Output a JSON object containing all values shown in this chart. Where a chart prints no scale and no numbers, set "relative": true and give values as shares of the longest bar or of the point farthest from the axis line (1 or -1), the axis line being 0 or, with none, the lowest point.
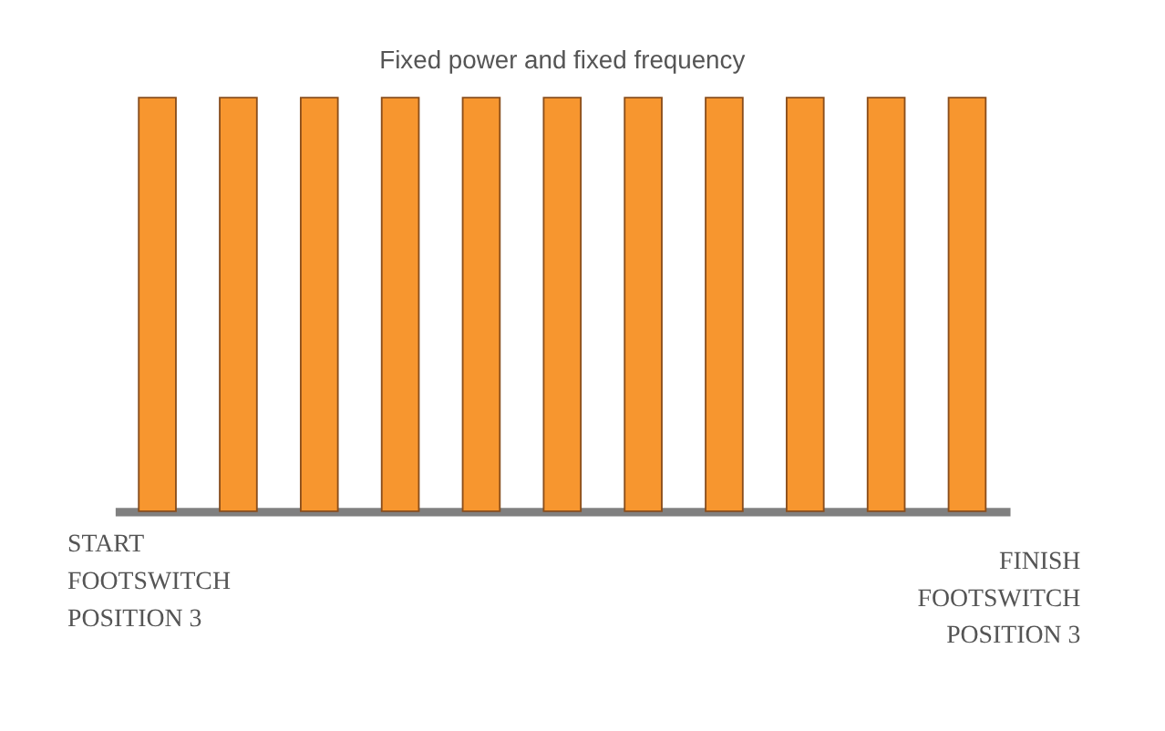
{
  "chart_data": {
    "type": "bar",
    "title": "Fixed power and fixed frequency",
    "categories": [
      null,
      null,
      null,
      null,
      null,
      null,
      null,
      null,
      null,
      null,
      null
    ],
    "values": [
      1,
      1,
      1,
      1,
      1,
      1,
      1,
      1,
      1,
      1,
      1
    ],
    "color": "#f7962f",
    "relative": true,
    "annotations": [
      "START\nFOOTSWITCH\nPOSITION 3",
      "FINISH\nFOOTSWITCH\nPOSITION 3"
    ]
  }
}
